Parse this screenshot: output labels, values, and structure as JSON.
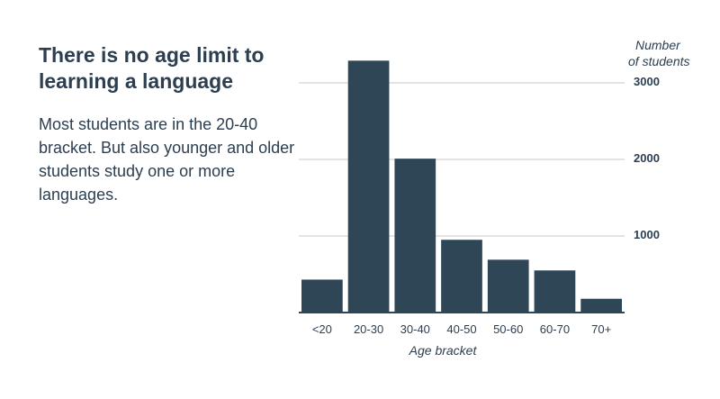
{
  "headline": "There is no age limit to learning a language",
  "body": "Most students are in the 20-40 bracket. But also younger and older students study one or more languages.",
  "colors": {
    "bar": "#2e4656",
    "text": "#2c3e50",
    "grid": "#c8c8c8",
    "axis": "#2e4656"
  },
  "chart_data": {
    "type": "bar",
    "categories": [
      "<20",
      "20-30",
      "30-40",
      "40-50",
      "50-60",
      "60-70",
      "70+"
    ],
    "values": [
      430,
      3290,
      2010,
      950,
      690,
      550,
      180
    ],
    "xlabel": "Age bracket",
    "ylabel_line1": "Number",
    "ylabel_line2": "of students",
    "yticks": [
      1000,
      2000,
      3000
    ],
    "ylim": [
      0,
      3000
    ],
    "grid": true,
    "y_axis_position": "right"
  }
}
